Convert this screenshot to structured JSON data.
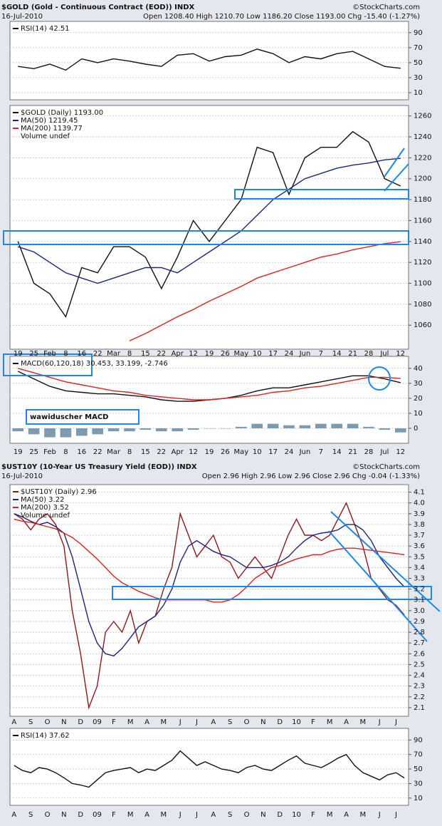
{
  "chart_data": [
    {
      "type": "line",
      "title": "RSI(14) 42.51",
      "color": "#111111",
      "values": [
        45,
        42,
        48,
        40,
        55,
        50,
        55,
        52,
        48,
        45,
        60,
        62,
        52,
        58,
        60,
        68,
        62,
        50,
        58,
        55,
        62,
        65,
        55,
        45,
        42.5
      ],
      "ylim": [
        0.5,
        105
      ],
      "yticks": [
        10,
        30,
        50,
        70,
        90
      ],
      "grid": true
    },
    {
      "type": "line",
      "title": "$GOLD (Gold - Continuous Contract (EOD)) INDX",
      "date": "16-Jul-2010",
      "quote": "Open 1208.40 High 1210.70 Low 1186.20 Close 1193.00 Chg -15.40 (-1.27%)",
      "source": "©StockCharts.com",
      "categories": [
        "19",
        "25",
        "Feb",
        "8",
        "16",
        "22",
        "Mar",
        "8",
        "15",
        "22",
        "Apr",
        "12",
        "19",
        "26",
        "May",
        "10",
        "17",
        "24",
        "Jun",
        "7",
        "14",
        "21",
        "28",
        "Jul",
        "12"
      ],
      "series": [
        {
          "name": "$GOLD (Daily) 1193.00",
          "color": "#111111",
          "values": [
            1140,
            1100,
            1090,
            1068,
            1115,
            1110,
            1135,
            1135,
            1125,
            1095,
            1125,
            1160,
            1140,
            1160,
            1180,
            1230,
            1225,
            1185,
            1220,
            1230,
            1230,
            1245,
            1235,
            1200,
            1193
          ]
        },
        {
          "name": "MA(50) 1219.45",
          "color": "#1a237e",
          "values": [
            1135,
            1130,
            1120,
            1110,
            1105,
            1100,
            1105,
            1110,
            1115,
            1115,
            1110,
            1120,
            1130,
            1140,
            1150,
            1165,
            1180,
            1190,
            1200,
            1205,
            1210,
            1213,
            1215,
            1218,
            1219.45
          ]
        },
        {
          "name": "MA(200) 1139.77",
          "color": "#e02020",
          "values": [
            null,
            null,
            null,
            null,
            null,
            null,
            null,
            1045,
            1052,
            1060,
            1068,
            1075,
            1083,
            1090,
            1097,
            1105,
            1110,
            1115,
            1120,
            1125,
            1128,
            1132,
            1135,
            1138,
            1139.77
          ]
        }
      ],
      "legend_note": "Volume undef",
      "ylim": [
        1037,
        1270
      ],
      "yticks": [
        1060,
        1080,
        1100,
        1120,
        1140,
        1160,
        1180,
        1200,
        1220,
        1240,
        1260
      ],
      "grid": true
    },
    {
      "type": "line",
      "title": "MACD(60,120,18) 30.453, 33.199, -2.746",
      "annotation": "wawiduscher MACD",
      "series": [
        {
          "color": "#111111",
          "values": [
            38,
            33,
            28,
            25,
            24,
            23,
            23,
            22,
            21,
            19,
            18,
            18,
            19,
            20,
            22,
            25,
            27,
            27,
            29,
            31,
            33,
            35,
            35,
            33,
            30.453
          ]
        },
        {
          "color": "#e02020",
          "values": [
            40,
            37,
            34,
            31,
            29,
            27,
            25,
            24,
            22,
            21,
            20,
            19,
            19,
            20,
            21,
            22,
            24,
            25,
            27,
            28,
            30,
            32,
            34,
            34,
            33.199
          ]
        }
      ],
      "histogram": [
        -2,
        -4,
        -6,
        -6,
        -5,
        -4,
        -2,
        -2,
        -1,
        -2,
        -2,
        -1,
        0,
        0,
        1,
        3,
        3,
        2,
        2,
        3,
        3,
        3,
        1,
        -1,
        -2.746
      ],
      "histogram_color": "#7d9bb0",
      "ylim": [
        -10,
        48
      ],
      "yticks": [
        0,
        10,
        20,
        30,
        40
      ],
      "grid": true
    },
    {
      "type": "line",
      "title": "$UST10Y (10-Year US Treasury Yield (EOD)) INDX",
      "date": "16-Jul-2010",
      "quote": "Open 2.96 High 2.96 Low 2.96 Close 2.96 Chg -0.04 (-1.33%)",
      "source": "©StockCharts.com",
      "categories": [
        "A",
        null,
        "S",
        null,
        "O",
        null,
        "N",
        null,
        "D",
        null,
        "09",
        null,
        "F",
        null,
        "M",
        null,
        "A",
        null,
        "M",
        null,
        "J",
        null,
        "J",
        null,
        "A",
        null,
        "S",
        null,
        "O",
        null,
        "N",
        null,
        "D",
        null,
        "10",
        null,
        "F",
        null,
        "M",
        null,
        "A",
        null,
        "M",
        null,
        "J",
        null,
        "J",
        null
      ],
      "series": [
        {
          "name": "$UST10Y (Daily) 2.96",
          "color": "#8b1a1a",
          "values": [
            3.9,
            3.85,
            3.75,
            3.85,
            3.9,
            3.8,
            3.6,
            3.0,
            2.6,
            2.1,
            2.3,
            2.8,
            2.9,
            2.8,
            3.0,
            2.7,
            2.9,
            2.95,
            3.2,
            3.4,
            3.9,
            3.7,
            3.5,
            3.6,
            3.7,
            3.5,
            3.45,
            3.3,
            3.4,
            3.5,
            3.4,
            3.3,
            3.5,
            3.7,
            3.85,
            3.7,
            3.7,
            3.65,
            3.7,
            3.85,
            4.0,
            3.8,
            3.6,
            3.3,
            3.2,
            3.1,
            3.05,
            2.96
          ]
        },
        {
          "name": "MA(50) 3.22",
          "color": "#1a237e",
          "values": [
            3.9,
            3.87,
            3.83,
            3.8,
            3.82,
            3.78,
            3.72,
            3.5,
            3.2,
            2.9,
            2.7,
            2.6,
            2.58,
            2.65,
            2.75,
            2.85,
            2.9,
            2.95,
            3.05,
            3.2,
            3.45,
            3.6,
            3.65,
            3.6,
            3.55,
            3.52,
            3.5,
            3.45,
            3.4,
            3.4,
            3.4,
            3.42,
            3.45,
            3.5,
            3.58,
            3.65,
            3.7,
            3.72,
            3.73,
            3.75,
            3.8,
            3.8,
            3.75,
            3.65,
            3.5,
            3.4,
            3.3,
            3.22
          ]
        },
        {
          "name": "MA(200) 3.52",
          "color": "#e02020",
          "values": [
            3.85,
            3.83,
            3.82,
            3.8,
            3.78,
            3.76,
            3.72,
            3.68,
            3.62,
            3.55,
            3.48,
            3.4,
            3.32,
            3.26,
            3.22,
            3.18,
            3.15,
            3.12,
            3.1,
            3.1,
            3.1,
            3.1,
            3.1,
            3.1,
            3.08,
            3.08,
            3.1,
            3.15,
            3.22,
            3.3,
            3.35,
            3.4,
            3.42,
            3.45,
            3.48,
            3.5,
            3.52,
            3.52,
            3.55,
            3.57,
            3.58,
            3.58,
            3.57,
            3.56,
            3.55,
            3.54,
            3.53,
            3.52
          ]
        }
      ],
      "legend_note": "Volume undef",
      "ylim": [
        2.02,
        4.17
      ],
      "yticks": [
        2.1,
        2.2,
        2.3,
        2.4,
        2.5,
        2.6,
        2.7,
        2.8,
        2.9,
        {
          "value": 3,
          "label": "3.0"
        },
        3.1,
        3.2,
        3.3,
        3.4,
        3.5,
        3.6,
        3.7,
        3.8,
        3.9,
        {
          "value": 4,
          "label": "4.0"
        },
        4.1
      ],
      "grid": true
    },
    {
      "type": "line",
      "title": "RSI(14) 37.62",
      "color": "#111111",
      "values": [
        55,
        48,
        45,
        52,
        50,
        45,
        38,
        30,
        28,
        25,
        35,
        45,
        48,
        50,
        52,
        45,
        50,
        48,
        55,
        62,
        75,
        65,
        55,
        60,
        55,
        50,
        48,
        45,
        52,
        55,
        50,
        48,
        55,
        62,
        68,
        58,
        55,
        52,
        58,
        65,
        70,
        55,
        45,
        40,
        35,
        42,
        45,
        37.62
      ],
      "ylim": [
        0,
        106
      ],
      "yticks": [
        10,
        30,
        50,
        70,
        90
      ],
      "grid": true
    }
  ]
}
